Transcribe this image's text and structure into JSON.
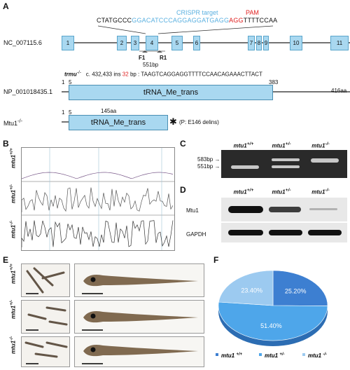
{
  "panels": {
    "a": "A",
    "b": "B",
    "c": "C",
    "d": "D",
    "e": "E",
    "f": "F"
  },
  "panelA": {
    "target_seq_prefix": "CTATGCCC",
    "target_seq_crispr": "GGACATCCCAGGAGGATGAGG",
    "target_seq_pam": "AGG",
    "target_seq_suffix": "TTTTCCAA",
    "crispr_label": "CRISPR target",
    "pam_label": "PAM",
    "gene_id": "NC_007115.6",
    "exons": [
      "1",
      "2",
      "3",
      "4",
      "5",
      "6",
      "7",
      "8",
      "9",
      "10",
      "11"
    ],
    "f1": "F1",
    "r1": "R1",
    "amplicon": "551bp",
    "mutant_label": "trmu",
    "mutant_sup": "-/-",
    "mutation_desc_prefix": "c. 432,433 ins",
    "mutation_ins": "32",
    "mutation_desc_suffix": "bp :  TAAGTCAGGAGGTTTTCCAACAGAAACTTACT",
    "protein_id": "NP_001018435.1",
    "domain_label": "tRNA_Me_trans",
    "wt_start_1": "1",
    "wt_start_5": "5",
    "wt_domain_end": "383",
    "wt_length": "416aa",
    "mut_label": "Mtu1",
    "mut_sup": "-/-",
    "mut_start_1": "1",
    "mut_start_5": "5",
    "mut_length": "145aa",
    "mut_star": "✱",
    "mut_note": "(P: E146 delins)"
  },
  "panelB": {
    "rows": [
      {
        "gene": "mtu1",
        "geno": "+/+"
      },
      {
        "gene": "mtu1",
        "geno": "+/-"
      },
      {
        "gene": "mtu1",
        "geno": "-/-"
      }
    ]
  },
  "panelC": {
    "lanes": [
      {
        "gene": "mtu1",
        "geno": "+/+"
      },
      {
        "gene": "mtu1",
        "geno": "+/-"
      },
      {
        "gene": "mtu1",
        "geno": "-/-"
      }
    ],
    "marker_583": "583bp",
    "marker_551": "551bp"
  },
  "panelD": {
    "lanes": [
      {
        "gene": "mtu1",
        "geno": "+/+"
      },
      {
        "gene": "mtu1",
        "geno": "+/-"
      },
      {
        "gene": "mtu1",
        "geno": "-/-"
      }
    ],
    "row1": "Mtu1",
    "row2": "GAPDH"
  },
  "panelE": {
    "rows": [
      {
        "gene": "mtu1",
        "geno": "+/+"
      },
      {
        "gene": "mtu1",
        "geno": "+/-"
      },
      {
        "gene": "mtu1",
        "geno": "-/-"
      }
    ]
  },
  "chart_data": {
    "type": "pie",
    "slices": [
      {
        "genotype": "+/+",
        "value": 25.2,
        "label": "25.20%",
        "color": "#3d7fd1"
      },
      {
        "genotype": "+/-",
        "value": 51.4,
        "label": "51.40%",
        "color": "#4ea6ea"
      },
      {
        "genotype": "-/-",
        "value": 23.4,
        "label": "23.40%",
        "color": "#9ccaf0"
      }
    ],
    "legend": [
      {
        "gene": "mtu1",
        "geno": "+/+"
      },
      {
        "gene": "mtu1",
        "geno": "+/-"
      },
      {
        "gene": "mtu1",
        "geno": "-/-"
      }
    ],
    "legend_position": "bottom"
  }
}
